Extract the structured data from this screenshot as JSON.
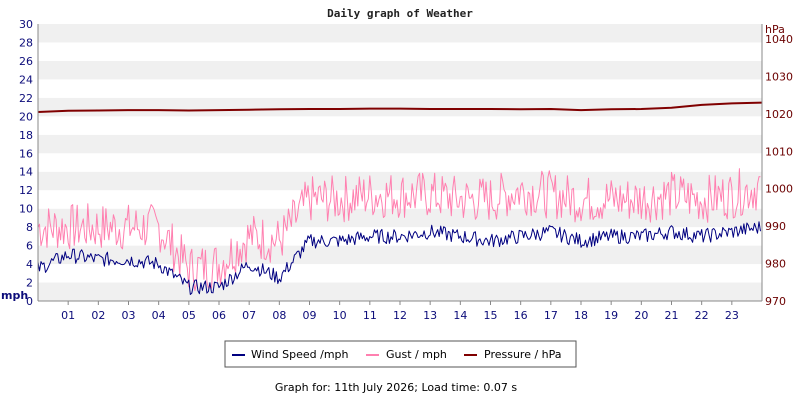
{
  "chart_data": {
    "type": "line",
    "title": "Daily graph of Weather",
    "x_categories": [
      "01",
      "02",
      "03",
      "04",
      "05",
      "06",
      "07",
      "08",
      "09",
      "10",
      "11",
      "12",
      "13",
      "14",
      "15",
      "16",
      "17",
      "18",
      "19",
      "20",
      "21",
      "22",
      "23"
    ],
    "x_range": [
      0,
      24
    ],
    "left_axis": {
      "unit": "mph",
      "range": [
        0,
        30
      ],
      "ticks": [
        "0",
        "2",
        "4",
        "6",
        "8",
        "10",
        "12",
        "14",
        "16",
        "18",
        "20",
        "22",
        "24",
        "26",
        "28",
        "30"
      ]
    },
    "right_axis": {
      "unit": "hPa",
      "range": [
        970,
        1044
      ],
      "ticks": [
        "970",
        "980",
        "990",
        "1000",
        "1010",
        "1020",
        "1030",
        "1040"
      ]
    },
    "grid": "horizontal bands",
    "legend_placement": "bottom-center",
    "series": [
      {
        "name": "Wind Speed /mph",
        "color": "#000080",
        "axis": "left",
        "hours": [
          0,
          1,
          2,
          3,
          4,
          5,
          6,
          7,
          8,
          9,
          10,
          11,
          12,
          13,
          14,
          15,
          16,
          17,
          18,
          19,
          20,
          21,
          22,
          23,
          24
        ],
        "values": [
          3.5,
          5.0,
          4.5,
          4.5,
          4.0,
          1.5,
          1.5,
          4.0,
          2.5,
          6.5,
          6.5,
          7.0,
          7.0,
          7.5,
          7.0,
          6.5,
          7.0,
          7.5,
          6.5,
          7.0,
          7.0,
          7.5,
          7.0,
          7.5,
          8.0
        ]
      },
      {
        "name": "Gust / mph",
        "color": "#ff80b0",
        "axis": "left",
        "hours": [
          0,
          1,
          2,
          3,
          4,
          5,
          6,
          7,
          8,
          9,
          10,
          11,
          12,
          13,
          14,
          15,
          16,
          17,
          18,
          19,
          20,
          21,
          22,
          23,
          24
        ],
        "values": [
          8.0,
          8.0,
          8.0,
          8.0,
          8.0,
          3.5,
          4.0,
          7.0,
          6.5,
          11.0,
          11.0,
          11.5,
          11.5,
          11.5,
          11.0,
          11.0,
          12.0,
          11.5,
          11.0,
          11.0,
          11.0,
          11.5,
          11.0,
          11.5,
          12.5
        ]
      },
      {
        "name": "Pressure / hPa",
        "color": "#800000",
        "axis": "right",
        "hours": [
          0,
          1,
          2,
          3,
          4,
          5,
          6,
          7,
          8,
          9,
          10,
          11,
          12,
          13,
          14,
          15,
          16,
          17,
          18,
          19,
          20,
          21,
          22,
          23,
          24
        ],
        "values": [
          1020.5,
          1020.8,
          1020.9,
          1021.0,
          1021.0,
          1020.9,
          1021.0,
          1021.1,
          1021.2,
          1021.3,
          1021.3,
          1021.4,
          1021.4,
          1021.3,
          1021.3,
          1021.3,
          1021.2,
          1021.3,
          1021.0,
          1021.2,
          1021.3,
          1021.6,
          1022.4,
          1022.8,
          1023.0
        ]
      }
    ]
  },
  "footer": "Graph for: 11th July 2026; Load time: 0.07 s"
}
